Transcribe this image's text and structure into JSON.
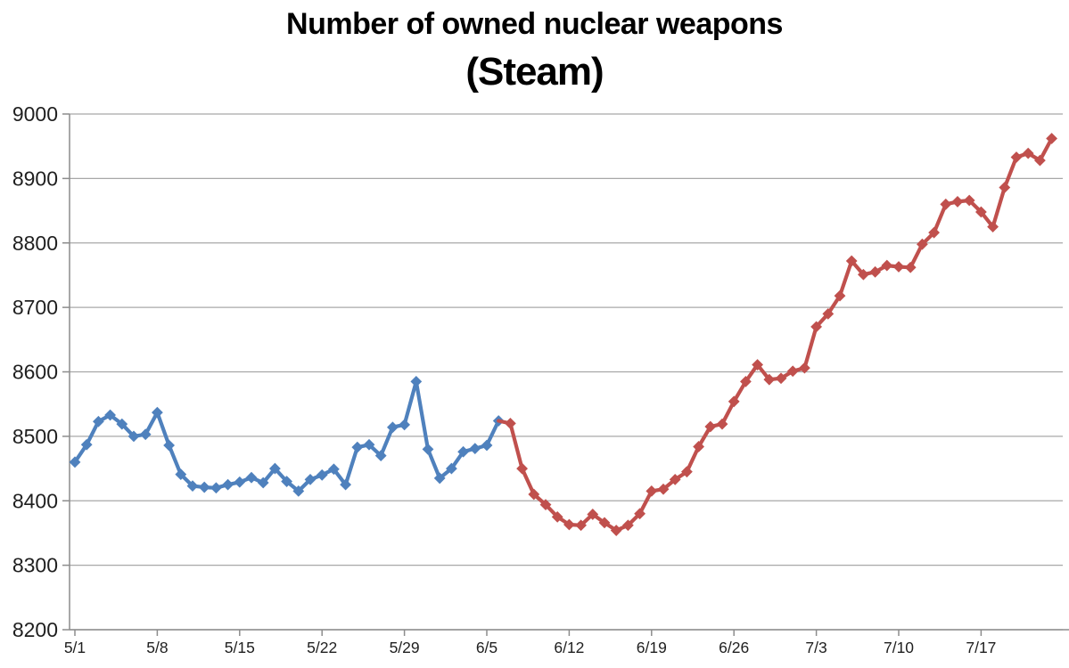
{
  "chart_data": {
    "type": "line",
    "title": "Number of owned nuclear weapons",
    "subtitle": "(Steam)",
    "xlabel": "",
    "ylabel": "",
    "ylim": [
      8200,
      9000
    ],
    "y_tick_step": 100,
    "y_tick_labels": [
      "9000",
      "8900",
      "8800",
      "8700",
      "8600",
      "8500",
      "8400",
      "8300",
      "8200"
    ],
    "x_tick_labels": [
      "5/1",
      "5/8",
      "5/15",
      "5/22",
      "5/29",
      "6/5",
      "6/12",
      "6/19",
      "6/26",
      "7/3",
      "7/10",
      "7/17"
    ],
    "grid": "horizontal",
    "legend": "none",
    "marker": "diamond",
    "colors": {
      "axis": "#8c8c8c",
      "gridline": "#a8a8a8",
      "text": "#1f1f1f"
    },
    "series": [
      {
        "name": "blue",
        "color": "#4F81BD",
        "dates": [
          "5/1",
          "5/2",
          "5/3",
          "5/4",
          "5/5",
          "5/6",
          "5/7",
          "5/8",
          "5/9",
          "5/10",
          "5/11",
          "5/12",
          "5/13",
          "5/14",
          "5/15",
          "5/16",
          "5/17",
          "5/18",
          "5/19",
          "5/20",
          "5/21",
          "5/22",
          "5/23",
          "5/24",
          "5/25",
          "5/26",
          "5/27",
          "5/28",
          "5/29",
          "5/30",
          "5/31",
          "6/1",
          "6/2",
          "6/3",
          "6/4",
          "6/5",
          "6/6"
        ],
        "values": [
          8460,
          8487,
          8523,
          8533,
          8519,
          8500,
          8503,
          8537,
          8486,
          8441,
          8423,
          8421,
          8420,
          8425,
          8429,
          8436,
          8428,
          8450,
          8430,
          8415,
          8433,
          8440,
          8449,
          8425,
          8483,
          8487,
          8470,
          8514,
          8518,
          8585,
          8480,
          8435,
          8450,
          8476,
          8481,
          8486,
          8524
        ]
      },
      {
        "name": "red",
        "color": "#C0504D",
        "dates": [
          "6/7",
          "6/8",
          "6/9",
          "6/10",
          "6/11",
          "6/12",
          "6/13",
          "6/14",
          "6/15",
          "6/16",
          "6/17",
          "6/18",
          "6/19",
          "6/20",
          "6/21",
          "6/22",
          "6/23",
          "6/24",
          "6/25",
          "6/26",
          "6/27",
          "6/28",
          "6/29",
          "6/30",
          "7/1",
          "7/2",
          "7/3",
          "7/4",
          "7/5",
          "7/6",
          "7/7",
          "7/8",
          "7/9",
          "7/10",
          "7/11",
          "7/12",
          "7/13",
          "7/14",
          "7/15",
          "7/16",
          "7/17",
          "7/18",
          "7/19",
          "7/20",
          "7/21",
          "7/22",
          "7/23"
        ],
        "values": [
          8520,
          8450,
          8410,
          8394,
          8375,
          8363,
          8362,
          8379,
          8366,
          8354,
          8362,
          8380,
          8415,
          8418,
          8433,
          8445,
          8484,
          8515,
          8519,
          8554,
          8585,
          8611,
          8588,
          8590,
          8601,
          8606,
          8670,
          8690,
          8718,
          8772,
          8751,
          8755,
          8765,
          8763,
          8762,
          8798,
          8816,
          8860,
          8864,
          8866,
          8848,
          8825,
          8886,
          8933,
          8939,
          8928,
          8962
        ]
      }
    ]
  }
}
